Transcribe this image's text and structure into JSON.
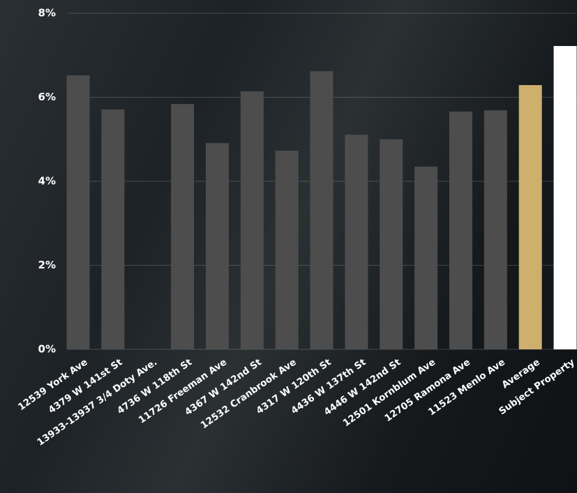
{
  "chart_data": {
    "type": "bar",
    "categories": [
      "12539 York Ave",
      "4379 W 141st St",
      "13933-13937 3/4 Doty Ave.",
      "4736 W 118th St",
      "11726 Freeman Ave",
      "4367 W 142nd St",
      "12532 Cranbrook Ave",
      "4317 W 120th St",
      "4436 W 137th St",
      "4446 W 142nd St",
      "12501 Kornblum Ave",
      "12705 Ramona Ave",
      "11523 Menlo Ave",
      "Average",
      "Subject Property"
    ],
    "values": [
      6.52,
      5.71,
      null,
      5.84,
      4.91,
      6.14,
      4.73,
      6.62,
      5.11,
      5.0,
      4.35,
      5.66,
      5.69,
      6.29,
      7.22
    ],
    "colors": [
      "#4d4d4d",
      "#4d4d4d",
      "#4d4d4d",
      "#4d4d4d",
      "#4d4d4d",
      "#4d4d4d",
      "#4d4d4d",
      "#4d4d4d",
      "#4d4d4d",
      "#4d4d4d",
      "#4d4d4d",
      "#4d4d4d",
      "#4d4d4d",
      "#cdb06e",
      "#ffffff"
    ],
    "ylim": [
      0,
      8
    ],
    "yticks": [
      {
        "value": 0,
        "label": "0%"
      },
      {
        "value": 2,
        "label": "2%"
      },
      {
        "value": 4,
        "label": "4%"
      },
      {
        "value": 6,
        "label": "6%"
      },
      {
        "value": 8,
        "label": "8%"
      }
    ],
    "grid": true
  }
}
